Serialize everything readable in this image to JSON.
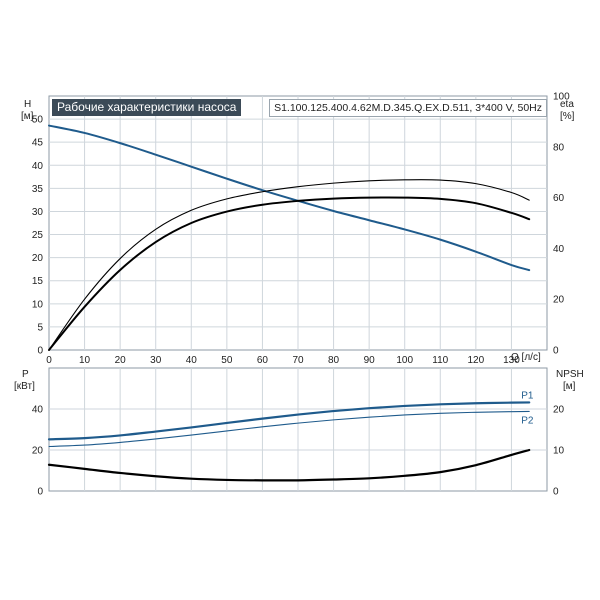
{
  "title": "Рабочие характеристики насоса",
  "model": "S1.100.125.400.4.62M.D.345.Q.EX.D.511, 3*400 V, 50Hz",
  "colors": {
    "blue": "#1f5b8c",
    "black": "#000000",
    "grid": "#cfd6dc",
    "frame": "#8e9aa4"
  },
  "chart_data": [
    {
      "type": "line",
      "name": "upper",
      "xlabel": "Q [л/с]",
      "ylabel_left": {
        "name": "H",
        "unit": "[м]"
      },
      "ylabel_right": {
        "name": "eta",
        "unit": "[%]"
      },
      "xlim": [
        0,
        140
      ],
      "ylim_left": [
        0,
        55
      ],
      "ylim_right": [
        0,
        100
      ],
      "x_ticks": [
        0,
        10,
        20,
        30,
        40,
        50,
        60,
        70,
        80,
        90,
        100,
        110,
        120,
        130
      ],
      "y_ticks_left": [
        0,
        5,
        10,
        15,
        20,
        25,
        30,
        35,
        40,
        45,
        50
      ],
      "y_ticks_right": [
        0,
        20,
        40,
        60,
        80,
        100
      ],
      "grid": true,
      "series": [
        {
          "key": "H",
          "axis": "left",
          "color": "#1f5b8c",
          "x": [
            0,
            10,
            20,
            30,
            40,
            50,
            60,
            70,
            80,
            90,
            100,
            110,
            120,
            130,
            135
          ],
          "y": [
            48.6,
            47.0,
            44.8,
            42.3,
            39.7,
            37.1,
            34.6,
            32.3,
            30.1,
            28.1,
            26.1,
            23.9,
            21.3,
            18.4,
            17.3
          ]
        },
        {
          "key": "eta_upper",
          "axis": "right",
          "color": "#000000",
          "width": 1.1,
          "x": [
            0,
            10,
            20,
            30,
            40,
            50,
            60,
            70,
            80,
            90,
            100,
            110,
            120,
            130,
            135
          ],
          "y": [
            0,
            20.0,
            36.0,
            47.5,
            55.0,
            59.5,
            62.3,
            64.3,
            65.7,
            66.6,
            67.0,
            66.9,
            65.5,
            62.0,
            59.0
          ]
        },
        {
          "key": "eta_lower",
          "axis": "right",
          "color": "#000000",
          "width": 2.0,
          "x": [
            0,
            10,
            20,
            30,
            40,
            50,
            60,
            70,
            80,
            90,
            100,
            110,
            120,
            130,
            135
          ],
          "y": [
            0,
            17.0,
            31.5,
            42.5,
            50.0,
            54.5,
            57.2,
            58.7,
            59.6,
            60.0,
            60.0,
            59.5,
            57.8,
            54.0,
            51.5
          ]
        }
      ]
    },
    {
      "type": "line",
      "name": "lower",
      "ylabel_left": {
        "name": "P",
        "unit": "[кВт]"
      },
      "ylabel_right": {
        "name": "NPSH",
        "unit": "[м]"
      },
      "xlim": [
        0,
        140
      ],
      "ylim_left": [
        0,
        60
      ],
      "ylim_right": [
        0,
        30
      ],
      "y_ticks_left": [
        0,
        20,
        40
      ],
      "y_ticks_right": [
        0,
        10,
        20
      ],
      "grid": true,
      "series": [
        {
          "key": "P1",
          "name": "P1",
          "axis": "left",
          "color": "#1f5b8c",
          "width": 2.2,
          "x": [
            0,
            10,
            20,
            30,
            40,
            50,
            60,
            70,
            80,
            90,
            100,
            110,
            120,
            130,
            135
          ],
          "y": [
            25.2,
            25.8,
            27.1,
            29.0,
            31.0,
            33.2,
            35.3,
            37.3,
            39.0,
            40.4,
            41.5,
            42.3,
            42.8,
            43.1,
            43.2
          ]
        },
        {
          "key": "P2",
          "name": "P2",
          "axis": "left",
          "color": "#1f5b8c",
          "width": 1.1,
          "x": [
            0,
            10,
            20,
            30,
            40,
            50,
            60,
            70,
            80,
            90,
            100,
            110,
            120,
            130,
            135
          ],
          "y": [
            21.7,
            22.4,
            23.7,
            25.4,
            27.3,
            29.3,
            31.3,
            33.1,
            34.7,
            36.0,
            37.1,
            37.9,
            38.4,
            38.7,
            38.8
          ]
        },
        {
          "key": "NPSH",
          "axis": "right",
          "color": "#000000",
          "width": 2.2,
          "x": [
            0,
            10,
            20,
            30,
            40,
            50,
            60,
            70,
            80,
            90,
            100,
            110,
            120,
            130,
            135
          ],
          "y": [
            6.4,
            5.4,
            4.4,
            3.6,
            3.0,
            2.7,
            2.6,
            2.6,
            2.8,
            3.1,
            3.7,
            4.6,
            6.3,
            8.8,
            10.0
          ]
        }
      ]
    }
  ]
}
